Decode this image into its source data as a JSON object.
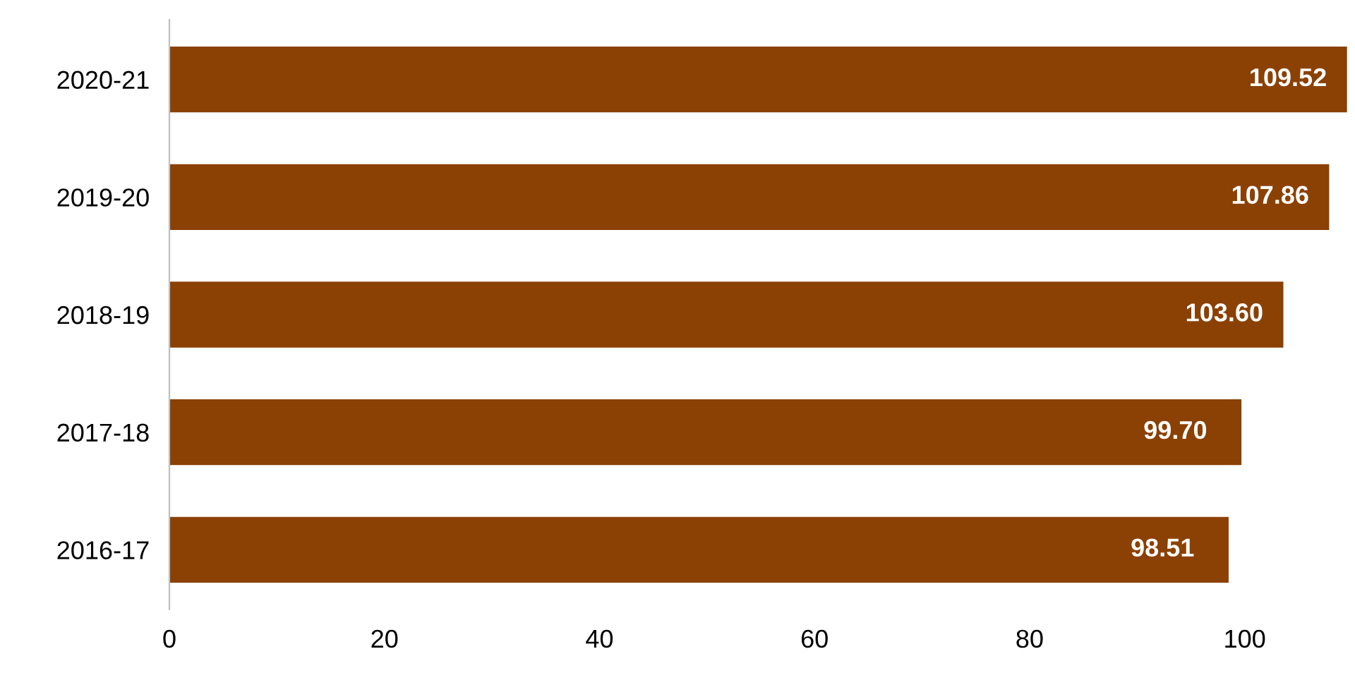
{
  "chart_data": {
    "type": "bar",
    "orientation": "horizontal",
    "categories": [
      "2020-21",
      "2019-20",
      "2018-19",
      "2017-18",
      "2016-17"
    ],
    "values": [
      109.52,
      107.86,
      103.6,
      99.7,
      98.51
    ],
    "value_labels": [
      "109.52",
      "107.86",
      "103.60",
      "99.70",
      "98.51"
    ],
    "color": "#8b4103",
    "xlim": [
      0,
      110
    ],
    "xticks": [
      0,
      20,
      40,
      60,
      80,
      100
    ],
    "grid": false,
    "legend": false
  }
}
